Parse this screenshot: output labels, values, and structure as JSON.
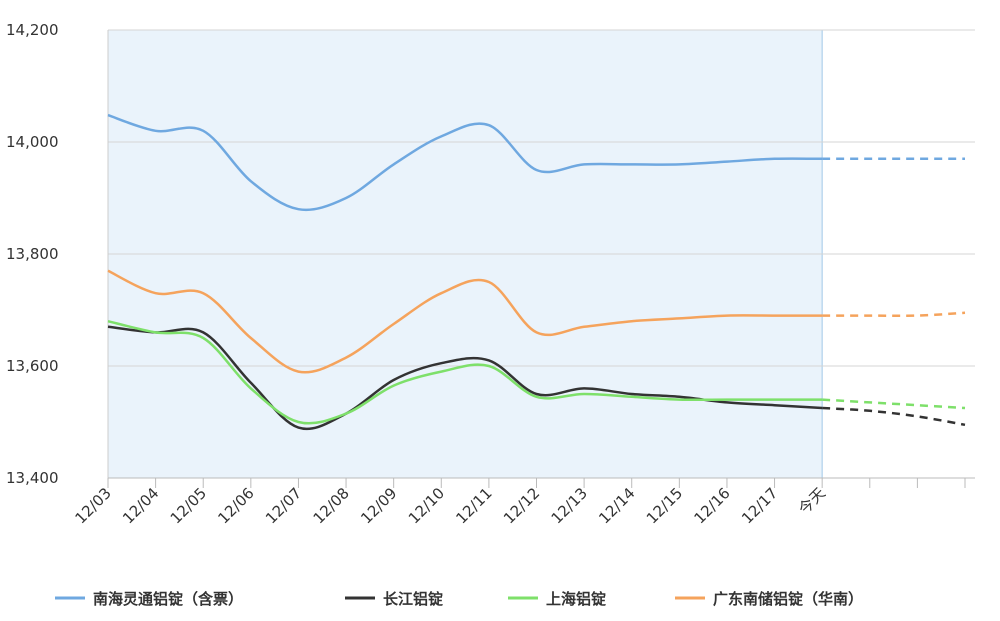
{
  "chart_data": {
    "type": "line",
    "categories": [
      "12/03",
      "12/04",
      "12/05",
      "12/06",
      "12/07",
      "12/08",
      "12/09",
      "12/10",
      "12/11",
      "12/12",
      "12/13",
      "12/14",
      "12/15",
      "12/16",
      "12/17",
      "今天",
      null,
      null,
      null
    ],
    "series": [
      {
        "name": "南海灵通铝锭（含票）",
        "color": "#6fa8e0",
        "values": [
          14048,
          14020,
          14020,
          13930,
          13880,
          13900,
          13960,
          14010,
          14030,
          13950,
          13960,
          13960,
          13960,
          13965,
          13970,
          13970,
          13970,
          13970,
          13970
        ]
      },
      {
        "name": "长江铝锭",
        "color": "#333333",
        "values": [
          13670,
          13660,
          13660,
          13570,
          13490,
          13515,
          13575,
          13605,
          13610,
          13550,
          13560,
          13550,
          13545,
          13535,
          13530,
          13525,
          13520,
          13510,
          13495
        ]
      },
      {
        "name": "上海铝锭",
        "color": "#7ee06a",
        "values": [
          13680,
          13660,
          13650,
          13560,
          13500,
          13515,
          13565,
          13590,
          13600,
          13545,
          13550,
          13545,
          13540,
          13540,
          13540,
          13540,
          13535,
          13530,
          13525
        ]
      },
      {
        "name": "广东南储铝锭（华南）",
        "color": "#f5a35c",
        "values": [
          13770,
          13730,
          13730,
          13650,
          13590,
          13615,
          13675,
          13730,
          13750,
          13660,
          13670,
          13680,
          13685,
          13690,
          13690,
          13690,
          13690,
          13690,
          13695
        ]
      }
    ],
    "ylim": [
      13400,
      14200
    ],
    "yticks": [
      {
        "value": 13400,
        "label": "13,400"
      },
      {
        "value": 13600,
        "label": "13,600"
      },
      {
        "value": 13800,
        "label": "13,800"
      },
      {
        "value": 14000,
        "label": "14,000"
      },
      {
        "value": 14200,
        "label": "14,200"
      }
    ],
    "grid": true
  }
}
